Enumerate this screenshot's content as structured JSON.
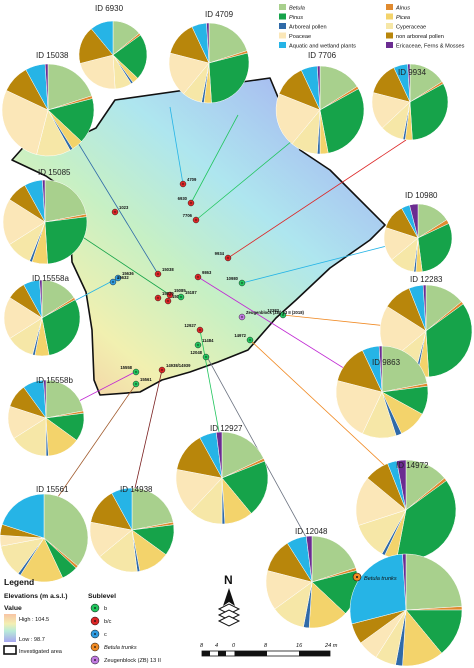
{
  "taxa": [
    {
      "key": "betula",
      "label": "Betula",
      "italic": true,
      "color": "#a8d08d"
    },
    {
      "key": "alnus",
      "label": "Alnus",
      "italic": true,
      "color": "#e08a2f"
    },
    {
      "key": "pinus",
      "label": "Pinus",
      "italic": true,
      "color": "#16a34a"
    },
    {
      "key": "picea",
      "label": "Picea",
      "italic": true,
      "color": "#f3d36b"
    },
    {
      "key": "arboreal",
      "label": "Arboreal pollen",
      "italic": false,
      "color": "#2f6aa8"
    },
    {
      "key": "cyperaceae",
      "label": "Cyperaceae",
      "italic": false,
      "color": "#f6e7a7"
    },
    {
      "key": "poaceae",
      "label": "Poaceae",
      "italic": false,
      "color": "#fbe7b8"
    },
    {
      "key": "nonarboreal",
      "label": "non arboreal pollen",
      "italic": false,
      "color": "#b8860b"
    },
    {
      "key": "aquatic",
      "label": "Aquatic and wetland plants",
      "italic": false,
      "color": "#26b4e6"
    },
    {
      "key": "ericaceae",
      "label": "Ericaceae, Ferns & Mosses",
      "italic": false,
      "color": "#6b2c91"
    }
  ],
  "pies": [
    {
      "id": "ID 6930",
      "values": {
        "betula": 14,
        "alnus": 1,
        "pinus": 22,
        "picea": 3,
        "arboreal": 1,
        "cyperaceae": 8,
        "poaceae": 22,
        "nonarboreal": 18,
        "aquatic": 11,
        "ericaceae": 0
      }
    },
    {
      "id": "ID 4709",
      "values": {
        "betula": 20,
        "alnus": 1,
        "pinus": 28,
        "picea": 3,
        "arboreal": 1,
        "cyperaceae": 8,
        "poaceae": 18,
        "nonarboreal": 14,
        "aquatic": 6,
        "ericaceae": 1
      }
    },
    {
      "id": "ID 15038",
      "values": {
        "betula": 20,
        "alnus": 1,
        "pinus": 16,
        "picea": 4,
        "arboreal": 1,
        "cyperaceae": 12,
        "poaceae": 28,
        "nonarboreal": 10,
        "aquatic": 7,
        "ericaceae": 1
      }
    },
    {
      "id": "ID 7706",
      "values": {
        "betula": 16,
        "alnus": 1,
        "pinus": 30,
        "picea": 3,
        "arboreal": 1,
        "cyperaceae": 10,
        "poaceae": 20,
        "nonarboreal": 12,
        "aquatic": 6,
        "ericaceae": 1
      }
    },
    {
      "id": "ID 9934",
      "values": {
        "betula": 16,
        "alnus": 1,
        "pinus": 32,
        "picea": 3,
        "arboreal": 1,
        "cyperaceae": 10,
        "poaceae": 16,
        "nonarboreal": 14,
        "aquatic": 6,
        "ericaceae": 1
      }
    },
    {
      "id": "ID 15085",
      "values": {
        "betula": 22,
        "alnus": 1,
        "pinus": 26,
        "picea": 6,
        "arboreal": 1,
        "cyperaceae": 10,
        "poaceae": 18,
        "nonarboreal": 8,
        "aquatic": 7,
        "ericaceae": 1
      }
    },
    {
      "id": "ID 10980",
      "values": {
        "betula": 16,
        "alnus": 2,
        "pinus": 30,
        "picea": 3,
        "arboreal": 1,
        "cyperaceae": 12,
        "poaceae": 16,
        "nonarboreal": 12,
        "aquatic": 4,
        "ericaceae": 4
      }
    },
    {
      "id": "ID 15558a",
      "values": {
        "betula": 16,
        "alnus": 1,
        "pinus": 30,
        "picea": 6,
        "arboreal": 1,
        "cyperaceae": 12,
        "poaceae": 18,
        "nonarboreal": 8,
        "aquatic": 7,
        "ericaceae": 1
      }
    },
    {
      "id": "ID 12283",
      "values": {
        "betula": 14,
        "alnus": 1,
        "pinus": 34,
        "picea": 4,
        "arboreal": 1,
        "cyperaceae": 10,
        "poaceae": 20,
        "nonarboreal": 10,
        "aquatic": 5,
        "ericaceae": 1
      }
    },
    {
      "id": "ID 15558b",
      "values": {
        "betula": 22,
        "alnus": 1,
        "pinus": 12,
        "picea": 14,
        "arboreal": 1,
        "cyperaceae": 16,
        "poaceae": 14,
        "nonarboreal": 10,
        "aquatic": 9,
        "ericaceae": 1
      }
    },
    {
      "id": "ID 9863",
      "values": {
        "betula": 22,
        "alnus": 1,
        "pinus": 10,
        "picea": 10,
        "arboreal": 2,
        "cyperaceae": 12,
        "poaceae": 22,
        "nonarboreal": 14,
        "aquatic": 6,
        "ericaceae": 1
      }
    },
    {
      "id": "ID 12927",
      "values": {
        "betula": 18,
        "alnus": 1,
        "pinus": 20,
        "picea": 10,
        "arboreal": 1,
        "cyperaceae": 12,
        "poaceae": 16,
        "nonarboreal": 14,
        "aquatic": 6,
        "ericaceae": 2
      }
    },
    {
      "id": "ID 14972",
      "values": {
        "betula": 14,
        "alnus": 1,
        "pinus": 38,
        "picea": 4,
        "arboreal": 1,
        "cyperaceae": 12,
        "poaceae": 16,
        "nonarboreal": 8,
        "aquatic": 3,
        "ericaceae": 3
      }
    },
    {
      "id": "ID 15561",
      "values": {
        "betula": 36,
        "alnus": 1,
        "pinus": 6,
        "picea": 16,
        "arboreal": 1,
        "cyperaceae": 12,
        "poaceae": 4,
        "nonarboreal": 4,
        "aquatic": 20,
        "ericaceae": 0
      }
    },
    {
      "id": "ID 14938",
      "values": {
        "betula": 22,
        "alnus": 1,
        "pinus": 12,
        "picea": 12,
        "arboreal": 1,
        "cyperaceae": 16,
        "poaceae": 14,
        "nonarboreal": 14,
        "aquatic": 8,
        "ericaceae": 0
      }
    },
    {
      "id": "ID 12048",
      "values": {
        "betula": 20,
        "alnus": 1,
        "pinus": 16,
        "picea": 14,
        "arboreal": 2,
        "cyperaceae": 12,
        "poaceae": 14,
        "nonarboreal": 12,
        "aquatic": 7,
        "ericaceae": 2
      }
    },
    {
      "id": "Betula trunks",
      "values": {
        "betula": 24,
        "alnus": 1,
        "pinus": 14,
        "picea": 12,
        "arboreal": 2,
        "cyperaceae": 6,
        "poaceae": 6,
        "nonarboreal": 6,
        "aquatic": 28,
        "ericaceae": 1
      }
    }
  ],
  "points": [
    {
      "label": "4709",
      "type": "b/c"
    },
    {
      "label": "6930",
      "type": "b/c"
    },
    {
      "label": "7706",
      "type": "b/c"
    },
    {
      "label": "1023",
      "type": "b/c"
    },
    {
      "label": "9934",
      "type": "b/c"
    },
    {
      "label": "15038",
      "type": "b/c"
    },
    {
      "label": "15636",
      "type": "c"
    },
    {
      "label": "15632",
      "type": "c"
    },
    {
      "label": "9863",
      "type": "b/c"
    },
    {
      "label": "10980",
      "type": "b"
    },
    {
      "label": "15085",
      "type": "b/c"
    },
    {
      "label": "15070",
      "type": "b/c"
    },
    {
      "label": "15075",
      "type": "b/c"
    },
    {
      "label": "15187",
      "type": "b"
    },
    {
      "label": "12283",
      "type": "b"
    },
    {
      "label": "Zeugenblock (ZB) 13 II (2018)",
      "type": "zb"
    },
    {
      "label": "12927",
      "type": "b/c"
    },
    {
      "label": "14972",
      "type": "b"
    },
    {
      "label": "11484",
      "type": "b"
    },
    {
      "label": "12048",
      "type": "b"
    },
    {
      "label": "14938/14939",
      "type": "b/c"
    },
    {
      "label": "15558",
      "type": "b"
    },
    {
      "label": "15561",
      "type": "b"
    }
  ],
  "legend": {
    "title": "Legend",
    "elevation_title": "Elevations (m a.s.l.)",
    "value_label": "Value",
    "high": "High : 104.5",
    "low": "Low : 98.7",
    "investigated": "Investigated area",
    "sublevel_title": "Sublevel",
    "sublevels": [
      {
        "label": "b",
        "color": "#22c55e"
      },
      {
        "label": "b/c",
        "color": "#dc2626"
      },
      {
        "label": "c",
        "color": "#2f9be0"
      },
      {
        "label": "Betula trunks",
        "italic": true,
        "color": "#f08a24"
      },
      {
        "label": "Zeugenblock (ZB) 13 II",
        "color": "#c07be0"
      }
    ]
  },
  "north_label": "N",
  "betula_trunks_marker_label": "Betula trunks",
  "scalebar": {
    "labels": [
      "8",
      "4",
      "0",
      "8",
      "16",
      "24 m"
    ]
  }
}
